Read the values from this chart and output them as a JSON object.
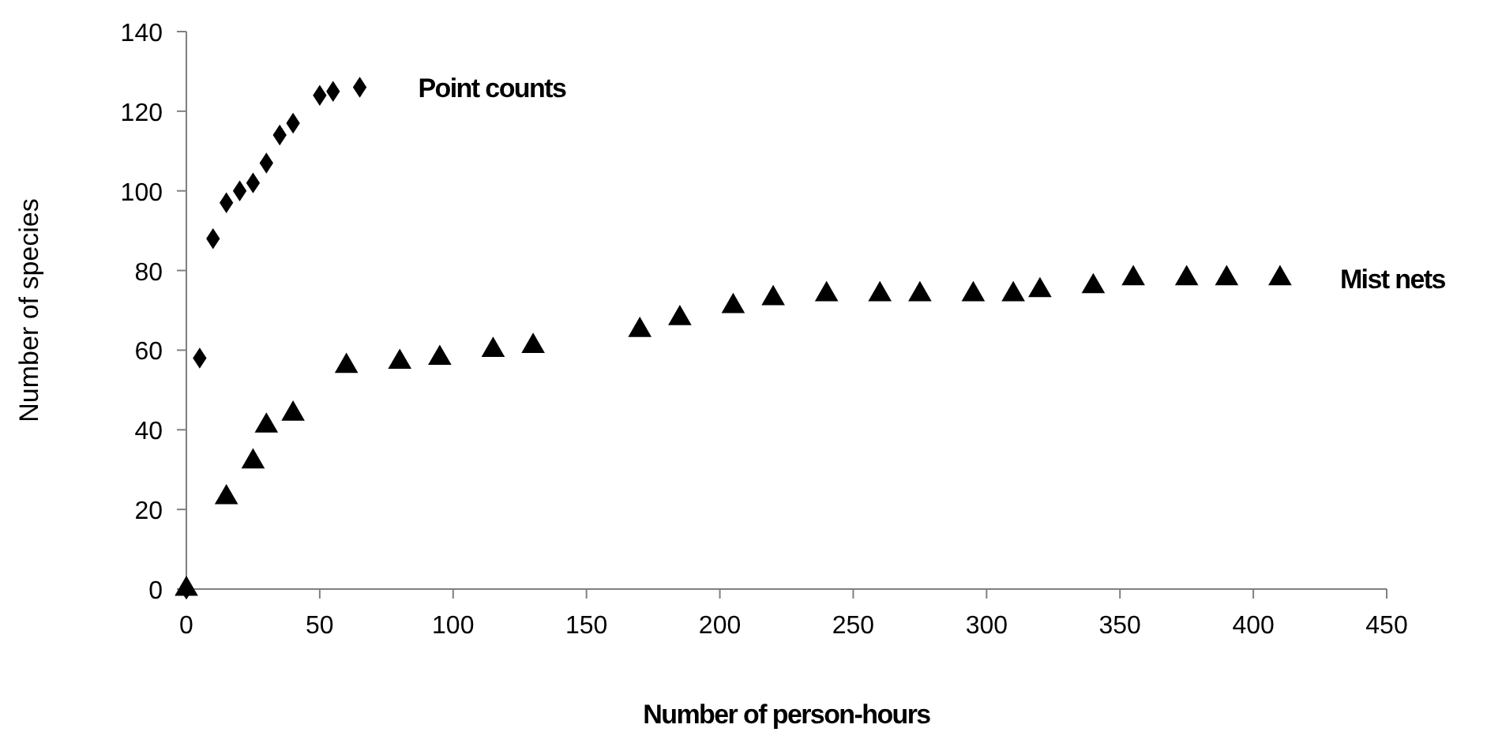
{
  "chart_data": {
    "type": "scatter",
    "xlabel": "Number of person-hours",
    "ylabel": "Number of species",
    "xlim": [
      0,
      450
    ],
    "xticks": [
      0,
      50,
      100,
      150,
      200,
      250,
      300,
      350,
      400,
      450
    ],
    "ylim": [
      0,
      140
    ],
    "yticks": [
      0,
      20,
      40,
      60,
      80,
      100,
      120,
      140
    ],
    "grid": false,
    "legend": false,
    "series": [
      {
        "name": "Point counts",
        "color": "#000000",
        "marker": "diamond",
        "x": [
          0,
          5,
          10,
          15,
          20,
          25,
          30,
          35,
          40,
          50,
          55,
          65
        ],
        "values": [
          0,
          58,
          88,
          97,
          100,
          102,
          107,
          114,
          117,
          124,
          125,
          126
        ]
      },
      {
        "name": "Mist nets",
        "color": "#000000",
        "marker": "triangle",
        "x": [
          0,
          15,
          25,
          30,
          40,
          60,
          80,
          95,
          115,
          130,
          170,
          185,
          205,
          220,
          240,
          260,
          275,
          295,
          310,
          320,
          340,
          355,
          375,
          390,
          410
        ],
        "values": [
          0,
          23,
          32,
          41,
          44,
          56,
          57,
          58,
          60,
          61,
          65,
          68,
          71,
          73,
          74,
          74,
          74,
          74,
          74,
          75,
          76,
          78,
          78,
          78,
          78
        ]
      }
    ]
  }
}
